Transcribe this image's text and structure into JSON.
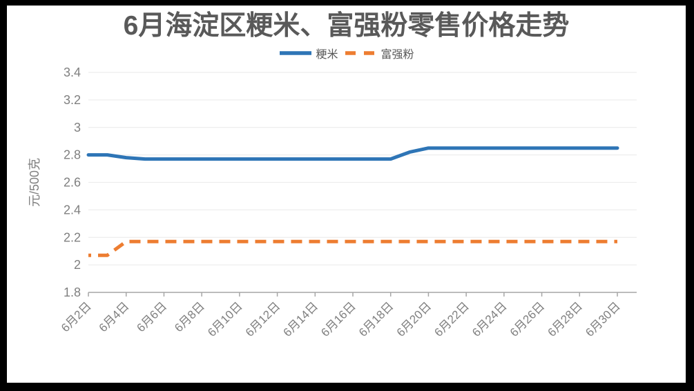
{
  "chart_data": {
    "type": "line",
    "title": "6月海淀区粳米、富强粉零售价格走势",
    "ylabel": "元/500克",
    "xlabel": "",
    "ylim": [
      1.8,
      3.4
    ],
    "yticks": [
      1.8,
      2,
      2.2,
      2.4,
      2.6,
      2.8,
      3,
      3.2,
      3.4
    ],
    "grid": true,
    "legend_position": "top",
    "x_tick_interval": 2,
    "x": [
      "6月2日",
      "6月3日",
      "6月4日",
      "6月5日",
      "6月6日",
      "6月7日",
      "6月8日",
      "6月9日",
      "6月10日",
      "6月11日",
      "6月12日",
      "6月13日",
      "6月14日",
      "6月15日",
      "6月16日",
      "6月17日",
      "6月18日",
      "6月19日",
      "6月20日",
      "6月21日",
      "6月22日",
      "6月23日",
      "6月24日",
      "6月25日",
      "6月26日",
      "6月27日",
      "6月28日",
      "6月29日",
      "6月30日"
    ],
    "series": [
      {
        "name": "粳米",
        "color": "#2E75B6",
        "style": "solid",
        "values": [
          2.8,
          2.8,
          2.78,
          2.77,
          2.77,
          2.77,
          2.77,
          2.77,
          2.77,
          2.77,
          2.77,
          2.77,
          2.77,
          2.77,
          2.77,
          2.77,
          2.77,
          2.82,
          2.85,
          2.85,
          2.85,
          2.85,
          2.85,
          2.85,
          2.85,
          2.85,
          2.85,
          2.85,
          2.85
        ]
      },
      {
        "name": "富强粉",
        "color": "#ED7D31",
        "style": "dashed",
        "values": [
          2.07,
          2.07,
          2.17,
          2.17,
          2.17,
          2.17,
          2.17,
          2.17,
          2.17,
          2.17,
          2.17,
          2.17,
          2.17,
          2.17,
          2.17,
          2.17,
          2.17,
          2.17,
          2.17,
          2.17,
          2.17,
          2.17,
          2.17,
          2.17,
          2.17,
          2.17,
          2.17,
          2.17,
          2.17
        ]
      }
    ]
  },
  "style": {
    "title_color": "#595959",
    "axis_label_color": "#7F7F7F",
    "axis_line_color": "#A6A6A6",
    "gridline_color": "#EDEDED",
    "background_color": "#FFFFFF",
    "frame_color": "#000000"
  }
}
